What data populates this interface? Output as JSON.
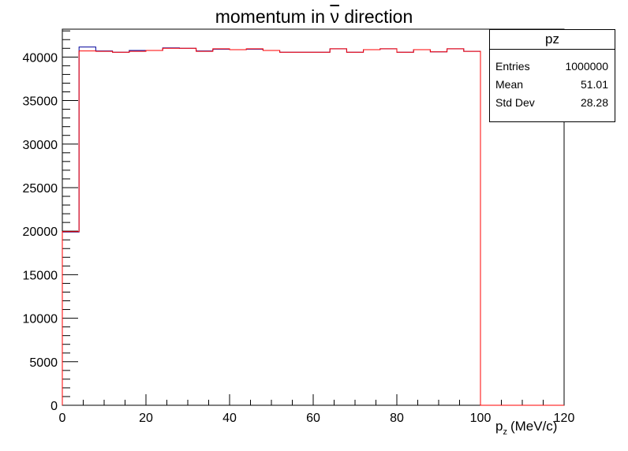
{
  "chart_data": {
    "type": "histogram",
    "title_prefix": "momentum in ",
    "title_symbol": "ν",
    "title_suffix": " direction",
    "xlabel_main": "p",
    "xlabel_sub": "z",
    "xlabel_unit": "(MeV/c)",
    "xlim": [
      0,
      120
    ],
    "ylim": [
      0,
      43200
    ],
    "x_ticks": [
      0,
      20,
      40,
      60,
      80,
      100,
      120
    ],
    "y_ticks": [
      0,
      5000,
      10000,
      15000,
      20000,
      25000,
      30000,
      35000,
      40000
    ],
    "bin_width": 4,
    "series": [
      {
        "color": "#000099",
        "values": [
          19900,
          41150,
          40700,
          40550,
          40750,
          40750,
          41050,
          41000,
          40700,
          40900,
          40850,
          40900,
          40750,
          40550,
          40550,
          40550,
          40950,
          40550,
          40850,
          40950,
          40550,
          40850,
          40600,
          40950,
          40650,
          0,
          0,
          0,
          0,
          0
        ]
      },
      {
        "color": "#ff0000",
        "values": [
          19950,
          40700,
          40650,
          40550,
          40650,
          40750,
          41000,
          41000,
          40650,
          40950,
          40850,
          40950,
          40750,
          40550,
          40550,
          40550,
          40950,
          40550,
          40850,
          40950,
          40550,
          40850,
          40600,
          40950,
          40650,
          0,
          0,
          0,
          0,
          0
        ]
      }
    ],
    "stats": {
      "name": "pz",
      "entries_label": "Entries",
      "entries": "1000000",
      "mean_label": "Mean",
      "mean": "51.01",
      "std_label": "Std Dev",
      "std": "28.28"
    }
  }
}
